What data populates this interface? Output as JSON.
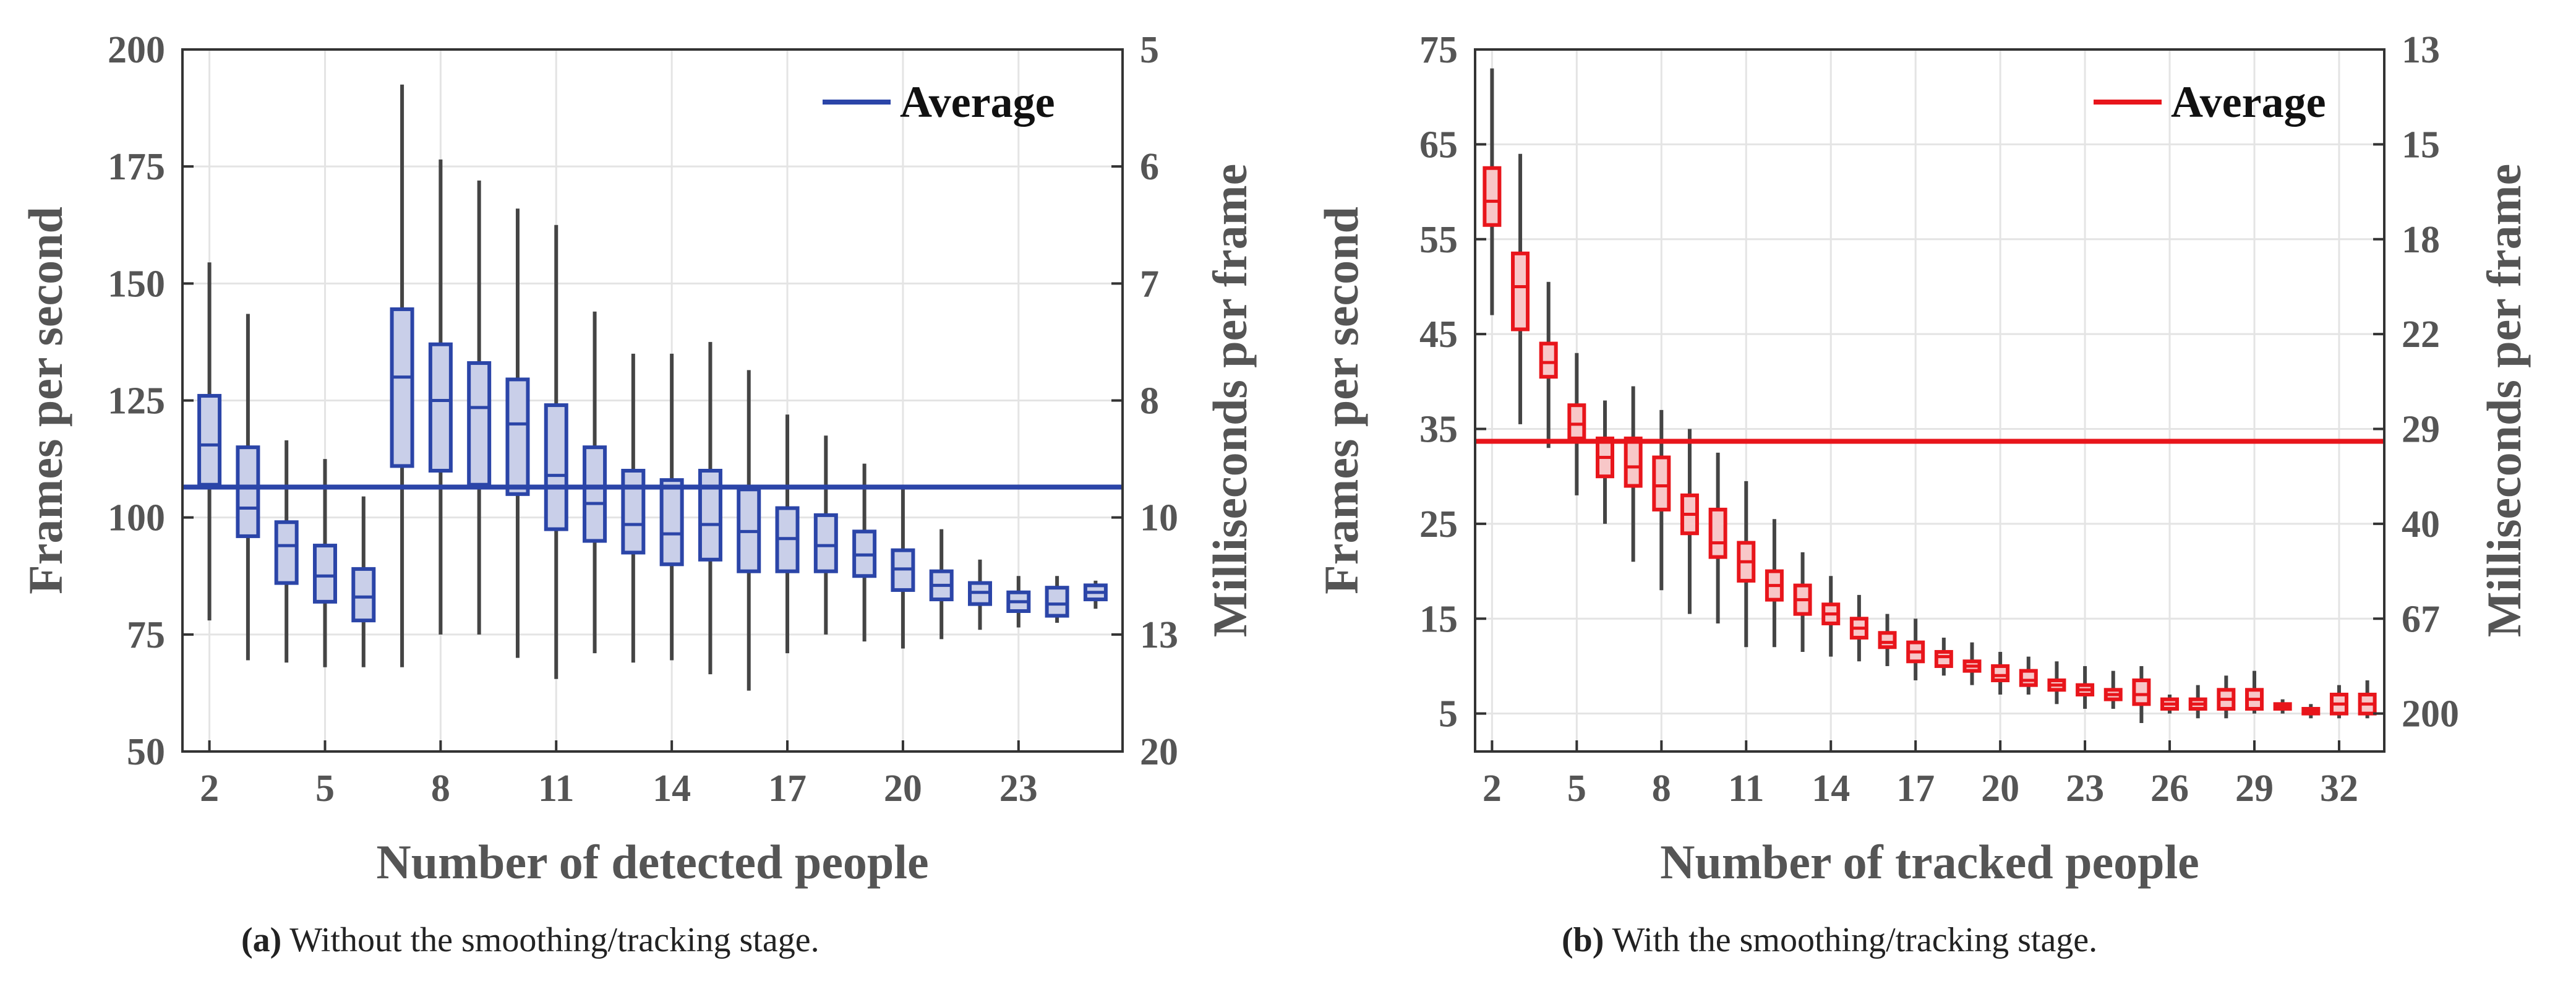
{
  "colors": {
    "panel_a": "#2b45a8",
    "panel_a_fill": "#c9cfe9",
    "panel_b": "#e8151b",
    "panel_b_fill": "#f8c7c8",
    "whisker": "#444444"
  },
  "chart_data": [
    {
      "type": "box",
      "xlabel": "Number of detected people",
      "ylabel": "Frames per second",
      "y2label": "Milliseconds per frame",
      "ylim": [
        50,
        200
      ],
      "yticks": [
        50,
        75,
        100,
        125,
        150,
        175,
        200
      ],
      "y2ticks": [
        "20",
        "13",
        "10",
        "8",
        "7",
        "6",
        "5"
      ],
      "xlim": [
        1.3,
        25.7
      ],
      "xticks": [
        2,
        5,
        8,
        11,
        14,
        17,
        20,
        23
      ],
      "legend": {
        "label": "Average",
        "position": "top-right"
      },
      "average": 106.5,
      "boxes": [
        {
          "x": 2,
          "min": 78,
          "q1": 107,
          "median": 115.5,
          "q3": 126,
          "max": 154.5
        },
        {
          "x": 3,
          "min": 69.5,
          "q1": 96,
          "median": 102,
          "q3": 115,
          "max": 143.5
        },
        {
          "x": 4,
          "min": 69,
          "q1": 86,
          "median": 94,
          "q3": 99,
          "max": 116.5
        },
        {
          "x": 5,
          "min": 68,
          "q1": 82,
          "median": 87.5,
          "q3": 94,
          "max": 112.5
        },
        {
          "x": 6,
          "min": 68,
          "q1": 78,
          "median": 83,
          "q3": 89,
          "max": 104.5
        },
        {
          "x": 7,
          "min": 68,
          "q1": 111,
          "median": 130,
          "q3": 144.5,
          "max": 192.5
        },
        {
          "x": 8,
          "min": 75,
          "q1": 110,
          "median": 125,
          "q3": 137,
          "max": 176.5
        },
        {
          "x": 9,
          "min": 75,
          "q1": 107,
          "median": 123.5,
          "q3": 133,
          "max": 172
        },
        {
          "x": 10,
          "min": 70,
          "q1": 105,
          "median": 120,
          "q3": 129.5,
          "max": 166
        },
        {
          "x": 11,
          "min": 65.5,
          "q1": 97.5,
          "median": 109,
          "q3": 124,
          "max": 162.5
        },
        {
          "x": 12,
          "min": 71,
          "q1": 95,
          "median": 103,
          "q3": 115,
          "max": 144
        },
        {
          "x": 13,
          "min": 69,
          "q1": 92.5,
          "median": 98.5,
          "q3": 110,
          "max": 135
        },
        {
          "x": 14,
          "min": 69.5,
          "q1": 90,
          "median": 96.5,
          "q3": 108,
          "max": 135
        },
        {
          "x": 15,
          "min": 66.5,
          "q1": 91,
          "median": 98.5,
          "q3": 110,
          "max": 137.5
        },
        {
          "x": 16,
          "min": 63,
          "q1": 88.5,
          "median": 97,
          "q3": 106,
          "max": 131.5
        },
        {
          "x": 17,
          "min": 71,
          "q1": 88.5,
          "median": 95.5,
          "q3": 102,
          "max": 122
        },
        {
          "x": 18,
          "min": 75,
          "q1": 88.5,
          "median": 94,
          "q3": 100.5,
          "max": 117.5
        },
        {
          "x": 19,
          "min": 73.5,
          "q1": 87.5,
          "median": 92,
          "q3": 97,
          "max": 111.5
        },
        {
          "x": 20,
          "min": 72,
          "q1": 84.5,
          "median": 89,
          "q3": 93,
          "max": 106
        },
        {
          "x": 21,
          "min": 74,
          "q1": 82.5,
          "median": 85.5,
          "q3": 88.5,
          "max": 97.5
        },
        {
          "x": 22,
          "min": 76,
          "q1": 81.5,
          "median": 84,
          "q3": 86,
          "max": 91
        },
        {
          "x": 23,
          "min": 76.5,
          "q1": 80,
          "median": 82,
          "q3": 84,
          "max": 87.5
        },
        {
          "x": 24,
          "min": 77.5,
          "q1": 79,
          "median": 81.5,
          "q3": 85,
          "max": 87.5
        },
        {
          "x": 25,
          "min": 80.5,
          "q1": 82.5,
          "median": 84,
          "q3": 85.5,
          "max": 86.5
        }
      ],
      "caption_label": "(a)",
      "caption_text": "Without the smoothing/tracking stage."
    },
    {
      "type": "box",
      "xlabel": "Number of tracked people",
      "ylabel": "Frames per second",
      "y2label": "Milliseconds per frame",
      "ylim": [
        1,
        75
      ],
      "yticks": [
        5,
        15,
        25,
        35,
        45,
        55,
        65,
        75
      ],
      "y2ticks": [
        "200",
        "67",
        "40",
        "29",
        "22",
        "18",
        "15",
        "13"
      ],
      "xlim": [
        1.4,
        33.6
      ],
      "xticks": [
        2,
        5,
        8,
        11,
        14,
        17,
        20,
        23,
        26,
        29,
        32
      ],
      "legend": {
        "label": "Average",
        "position": "top-right"
      },
      "average": 33.7,
      "boxes": [
        {
          "x": 2,
          "min": 47,
          "q1": 56.5,
          "median": 59,
          "q3": 62.5,
          "max": 73
        },
        {
          "x": 3,
          "min": 35.5,
          "q1": 45.5,
          "median": 50,
          "q3": 53.5,
          "max": 64
        },
        {
          "x": 4,
          "min": 33,
          "q1": 40.5,
          "median": 42,
          "q3": 44,
          "max": 50.5
        },
        {
          "x": 5,
          "min": 28,
          "q1": 34,
          "median": 35.5,
          "q3": 37.5,
          "max": 43
        },
        {
          "x": 6,
          "min": 25,
          "q1": 30,
          "median": 32,
          "q3": 34,
          "max": 38
        },
        {
          "x": 7,
          "min": 21,
          "q1": 29,
          "median": 31,
          "q3": 34,
          "max": 39.5
        },
        {
          "x": 8,
          "min": 18,
          "q1": 26.5,
          "median": 29,
          "q3": 32,
          "max": 37
        },
        {
          "x": 9,
          "min": 15.5,
          "q1": 24,
          "median": 26,
          "q3": 28,
          "max": 35
        },
        {
          "x": 10,
          "min": 14.5,
          "q1": 21.5,
          "median": 23,
          "q3": 26.5,
          "max": 32.5
        },
        {
          "x": 11,
          "min": 12,
          "q1": 19,
          "median": 21,
          "q3": 23,
          "max": 29.5
        },
        {
          "x": 12,
          "min": 12,
          "q1": 17,
          "median": 18.5,
          "q3": 20,
          "max": 25.5
        },
        {
          "x": 13,
          "min": 11.5,
          "q1": 15.5,
          "median": 17,
          "q3": 18.5,
          "max": 22
        },
        {
          "x": 14,
          "min": 11,
          "q1": 14.5,
          "median": 15.5,
          "q3": 16.5,
          "max": 19.5
        },
        {
          "x": 15,
          "min": 10.5,
          "q1": 13,
          "median": 14,
          "q3": 15,
          "max": 17.5
        },
        {
          "x": 16,
          "min": 10,
          "q1": 12,
          "median": 12.5,
          "q3": 13.5,
          "max": 15.5
        },
        {
          "x": 17,
          "min": 8.5,
          "q1": 10.5,
          "median": 11.5,
          "q3": 12.5,
          "max": 15
        },
        {
          "x": 18,
          "min": 9,
          "q1": 10,
          "median": 11,
          "q3": 11.5,
          "max": 13
        },
        {
          "x": 19,
          "min": 8,
          "q1": 9.5,
          "median": 10,
          "q3": 10.5,
          "max": 12.5
        },
        {
          "x": 20,
          "min": 7,
          "q1": 8.5,
          "median": 9,
          "q3": 10,
          "max": 11.5
        },
        {
          "x": 21,
          "min": 7,
          "q1": 8,
          "median": 8.5,
          "q3": 9.5,
          "max": 11
        },
        {
          "x": 22,
          "min": 6,
          "q1": 7.5,
          "median": 8,
          "q3": 8.5,
          "max": 10.5
        },
        {
          "x": 23,
          "min": 5.5,
          "q1": 7,
          "median": 7.5,
          "q3": 8,
          "max": 10
        },
        {
          "x": 24,
          "min": 5.5,
          "q1": 6.5,
          "median": 7,
          "q3": 7.5,
          "max": 9.5
        },
        {
          "x": 25,
          "min": 4,
          "q1": 6,
          "median": 7,
          "q3": 8.5,
          "max": 10
        },
        {
          "x": 26,
          "min": 5,
          "q1": 5.5,
          "median": 6,
          "q3": 6.5,
          "max": 7
        },
        {
          "x": 27,
          "min": 4.5,
          "q1": 5.5,
          "median": 6,
          "q3": 6.5,
          "max": 8
        },
        {
          "x": 28,
          "min": 4.5,
          "q1": 5.5,
          "median": 6.5,
          "q3": 7.5,
          "max": 9
        },
        {
          "x": 29,
          "min": 5,
          "q1": 5.5,
          "median": 6.5,
          "q3": 7.5,
          "max": 9.5
        },
        {
          "x": 30,
          "min": 5,
          "q1": 5.5,
          "median": 5.8,
          "q3": 6,
          "max": 6.5
        },
        {
          "x": 31,
          "min": 4.5,
          "q1": 5,
          "median": 5.2,
          "q3": 5.5,
          "max": 6
        },
        {
          "x": 32,
          "min": 4.5,
          "q1": 5,
          "median": 6,
          "q3": 7,
          "max": 8
        },
        {
          "x": 33,
          "min": 4.5,
          "q1": 5,
          "median": 6,
          "q3": 7,
          "max": 8.5
        }
      ],
      "caption_label": "(b)",
      "caption_text": "With the smoothing/tracking stage."
    }
  ]
}
